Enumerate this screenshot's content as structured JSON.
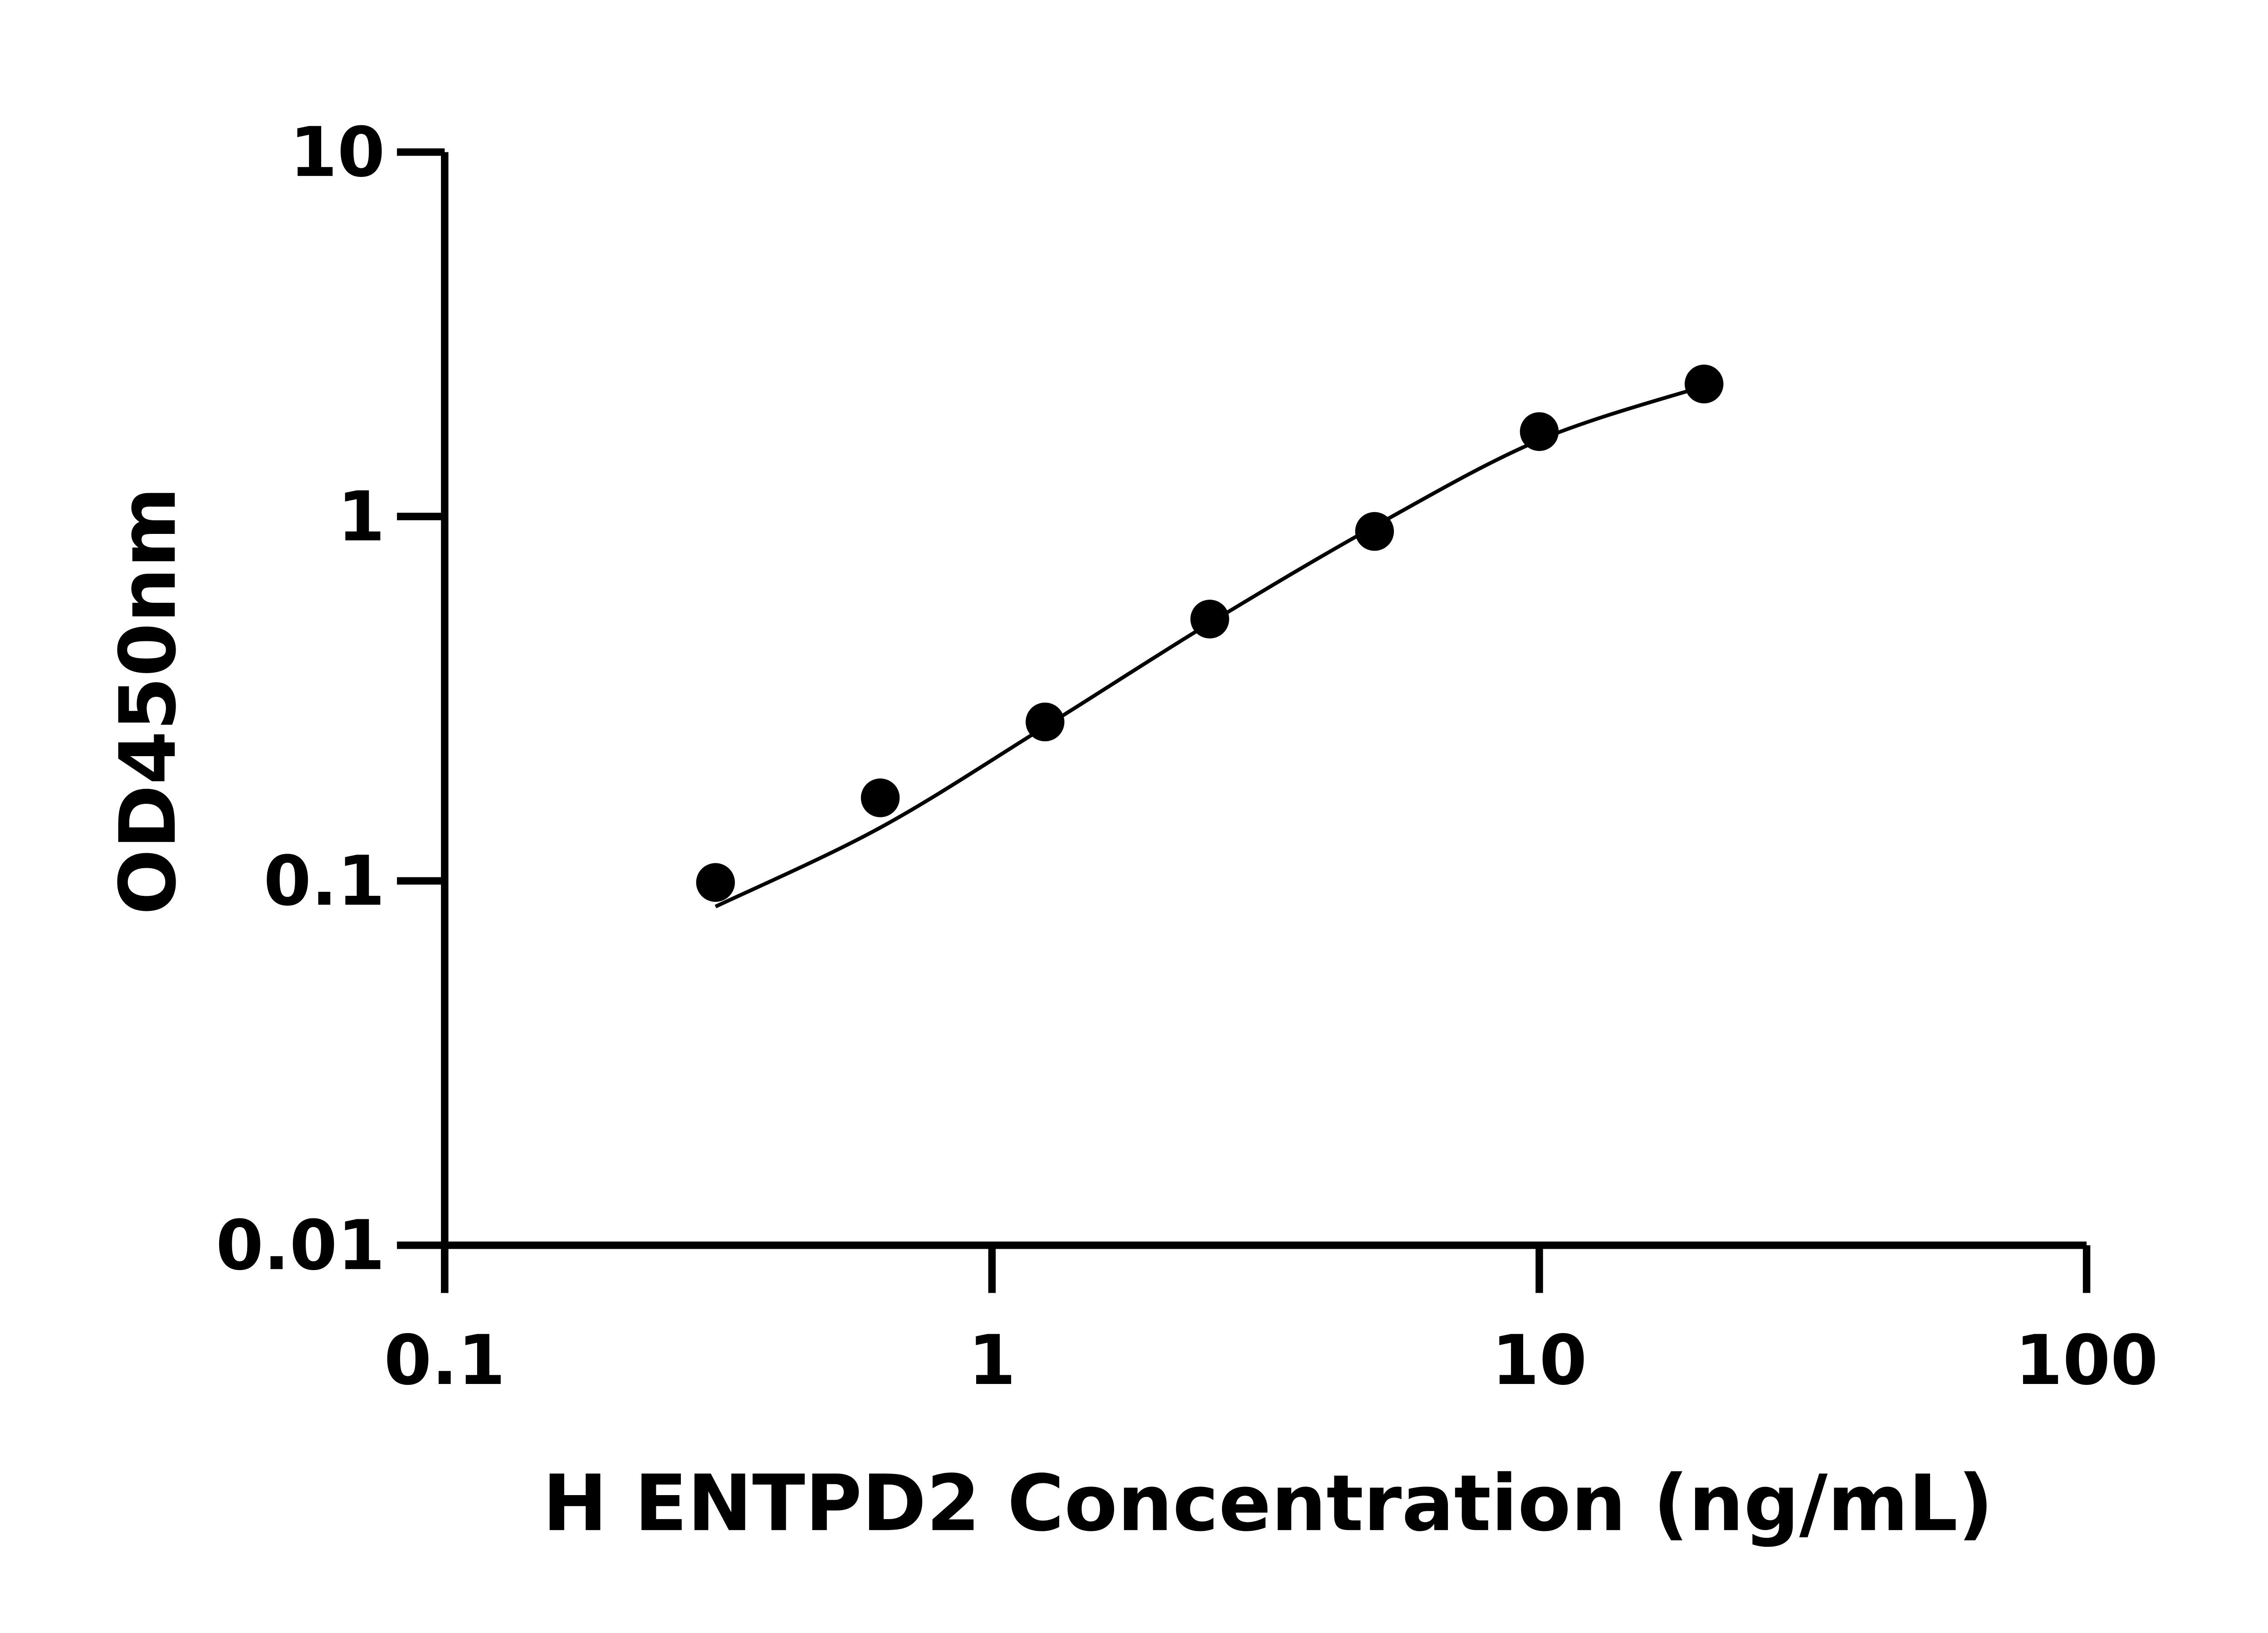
{
  "chart_data": {
    "type": "scatter",
    "title": "",
    "xlabel": "H ENTPD2 Concentration (ng/mL)",
    "ylabel": "OD450nm",
    "x_scale": "log",
    "y_scale": "log",
    "xlim": [
      0.1,
      100
    ],
    "ylim": [
      0.01,
      10
    ],
    "x_ticks": [
      "0.1",
      "1",
      "10",
      "100"
    ],
    "y_ticks": [
      "0.01",
      "0.1",
      "1",
      "10"
    ],
    "grid": false,
    "legend": "none",
    "fit_curve": true,
    "colors": {
      "points": "#000000",
      "curve": "#000000",
      "axes": "#000000"
    },
    "series": [
      {
        "x": [
          0.3125,
          0.625,
          1.25,
          2.5,
          5,
          10,
          20
        ],
        "y": [
          0.099,
          0.169,
          0.273,
          0.523,
          0.91,
          1.71,
          2.31
        ]
      }
    ]
  }
}
